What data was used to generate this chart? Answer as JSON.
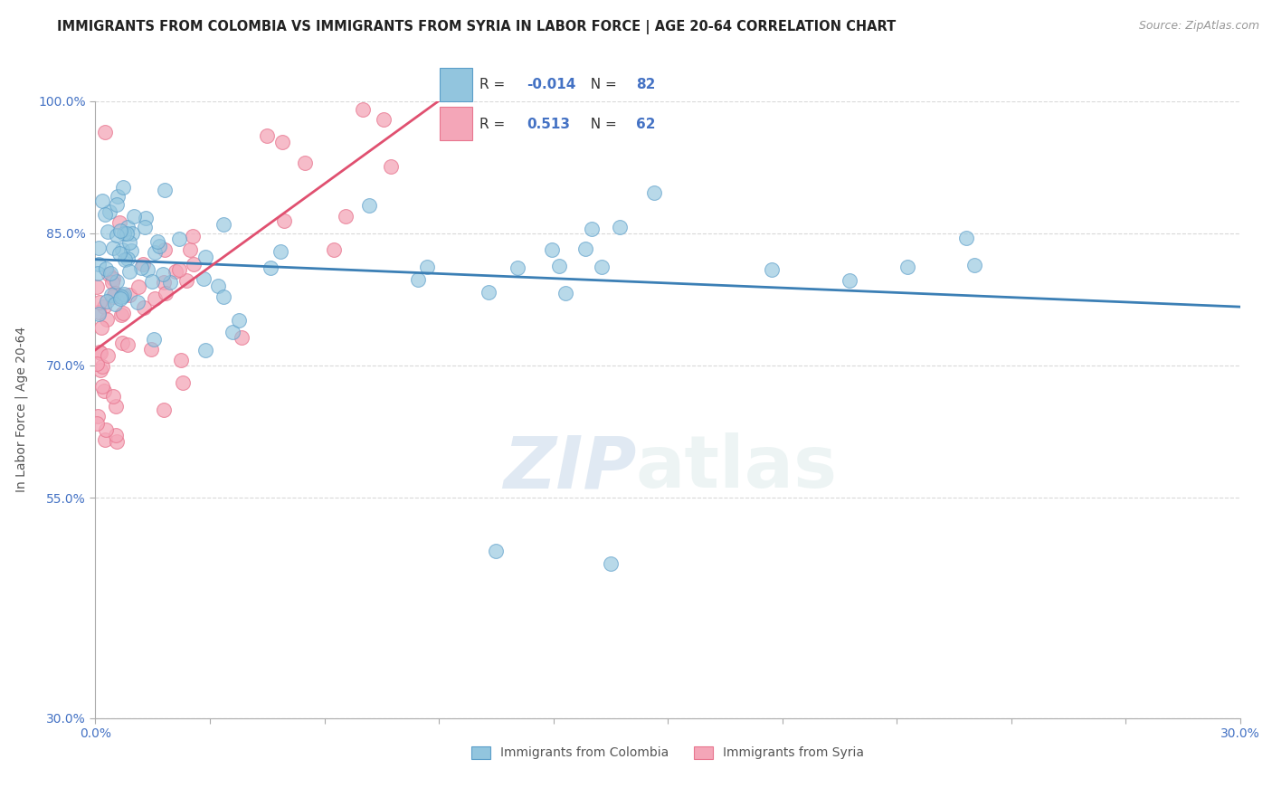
{
  "title": "IMMIGRANTS FROM COLOMBIA VS IMMIGRANTS FROM SYRIA IN LABOR FORCE | AGE 20-64 CORRELATION CHART",
  "source": "Source: ZipAtlas.com",
  "ylabel": "In Labor Force | Age 20-64",
  "xlim": [
    0.0,
    30.0
  ],
  "ylim": [
    30.0,
    100.0
  ],
  "ytick_positions": [
    30,
    55,
    70,
    85,
    100
  ],
  "ytick_labels": [
    "30.0%",
    "55.0%",
    "70.0%",
    "85.0%",
    "100.0%"
  ],
  "xtick_positions": [
    0,
    3,
    6,
    9,
    12,
    15,
    18,
    21,
    24,
    27,
    30
  ],
  "xtick_labels": [
    "0.0%",
    "",
    "",
    "",
    "",
    "",
    "",
    "",
    "",
    "",
    "30.0%"
  ],
  "colombia_color": "#92c5de",
  "syria_color": "#f4a6b8",
  "colombia_edge_color": "#5b9ec9",
  "syria_edge_color": "#e8768f",
  "colombia_line_color": "#3b7fb5",
  "syria_line_color": "#e05070",
  "R_colombia": -0.014,
  "N_colombia": 82,
  "R_syria": 0.513,
  "N_syria": 62,
  "watermark_zip": "ZIP",
  "watermark_atlas": "atlas",
  "background_color": "#ffffff",
  "grid_color": "#d9d9d9",
  "axis_color": "#aaaaaa",
  "tick_color": "#4472c4",
  "title_fontsize": 10.5,
  "label_fontsize": 10,
  "tick_fontsize": 10
}
